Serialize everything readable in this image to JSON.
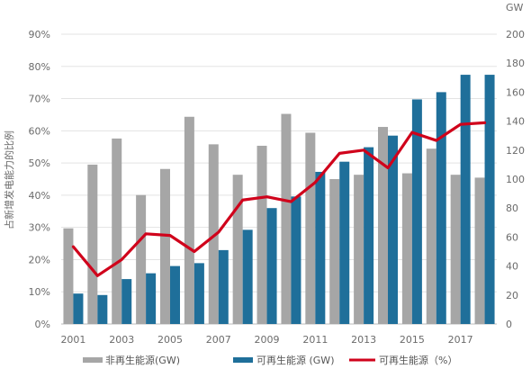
{
  "chart_data": {
    "type": "bar",
    "categories": [
      "2001",
      "2002",
      "2003",
      "2004",
      "2005",
      "2006",
      "2007",
      "2008",
      "2009",
      "2010",
      "2011",
      "2012",
      "2013",
      "2014",
      "2015",
      "2016",
      "2017",
      "2018"
    ],
    "x_tick_labels": [
      "2001",
      "2003",
      "2005",
      "2007",
      "2009",
      "2011",
      "2013",
      "2015",
      "2017"
    ],
    "series": [
      {
        "name": "非再生能源(GW)",
        "kind": "bar",
        "axis": "right",
        "color": "#a6a6a6",
        "values": [
          66,
          110,
          128,
          89,
          107,
          143,
          124,
          103,
          123,
          145,
          132,
          100,
          103,
          136,
          104,
          121,
          103,
          101
        ]
      },
      {
        "name": "可再生能源 (GW)",
        "kind": "bar",
        "axis": "right",
        "color": "#1f6f9a",
        "values": [
          21,
          20,
          31,
          35,
          40,
          42,
          51,
          65,
          80,
          88,
          105,
          112,
          122,
          130,
          155,
          160,
          172,
          172
        ]
      },
      {
        "name": "可再生能源（%）",
        "kind": "line",
        "axis": "left",
        "color": "#d0021b",
        "values": [
          24,
          15,
          20,
          28,
          27.5,
          22.5,
          28.5,
          38.5,
          39.5,
          38,
          44,
          53,
          54,
          48.5,
          59.5,
          57,
          62,
          62.5
        ]
      }
    ],
    "y_left": {
      "label": "占新增发电能力的比例",
      "range": [
        0,
        90
      ],
      "ticks": [
        "0%",
        "10%",
        "20%",
        "30%",
        "40%",
        "50%",
        "60%",
        "70%",
        "80%",
        "90%"
      ]
    },
    "y_right": {
      "label": "GW",
      "range": [
        0,
        200
      ],
      "ticks": [
        "0",
        "20",
        "40",
        "60",
        "80",
        "100",
        "120",
        "140",
        "160",
        "180",
        "200"
      ]
    },
    "grid": true,
    "legend_position": "bottom"
  }
}
